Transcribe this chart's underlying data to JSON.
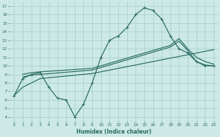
{
  "xlabel": "Humidex (Indice chaleur)",
  "xlim": [
    -0.5,
    23.5
  ],
  "ylim": [
    3.5,
    17.5
  ],
  "xticks": [
    0,
    1,
    2,
    3,
    4,
    5,
    6,
    7,
    8,
    9,
    10,
    11,
    12,
    13,
    14,
    15,
    16,
    17,
    18,
    19,
    20,
    21,
    22,
    23
  ],
  "yticks": [
    4,
    5,
    6,
    7,
    8,
    9,
    10,
    11,
    12,
    13,
    14,
    15,
    16,
    17
  ],
  "bg_color": "#cce9e5",
  "grid_color": "#aad4cf",
  "line_color": "#2a6b63",
  "curve1_x": [
    0,
    1,
    2,
    3,
    4,
    5,
    6,
    7,
    8,
    9,
    10,
    11,
    12,
    13,
    14,
    15,
    16,
    17,
    18,
    19,
    20,
    21,
    22,
    23
  ],
  "curve1_y": [
    6.5,
    8.5,
    9.0,
    9.2,
    7.5,
    6.2,
    6.0,
    4.0,
    5.5,
    8.0,
    11.0,
    13.0,
    13.5,
    14.5,
    16.0,
    16.8,
    16.5,
    15.5,
    13.5,
    12.0,
    11.5,
    10.5,
    10.0,
    10.0
  ],
  "curve2_x": [
    1,
    2,
    3,
    9,
    10,
    11,
    12,
    13,
    14,
    15,
    16,
    17,
    18,
    19,
    20,
    21,
    22,
    23
  ],
  "curve2_y": [
    9.0,
    9.2,
    9.3,
    9.7,
    10.0,
    10.3,
    10.6,
    10.9,
    11.2,
    11.5,
    11.8,
    12.1,
    12.4,
    13.2,
    12.0,
    11.0,
    10.5,
    10.2
  ],
  "curve3_x": [
    1,
    2,
    3,
    9,
    10,
    11,
    12,
    13,
    14,
    15,
    16,
    17,
    18,
    19,
    20,
    21,
    22,
    23
  ],
  "curve3_y": [
    8.7,
    8.9,
    9.0,
    9.5,
    9.8,
    10.1,
    10.4,
    10.7,
    11.0,
    11.3,
    11.6,
    11.9,
    12.2,
    12.9,
    11.8,
    10.5,
    10.1,
    10.0
  ],
  "curve4_x": [
    0,
    1,
    2,
    3,
    4,
    5,
    6,
    7,
    8,
    9,
    10,
    11,
    12,
    13,
    14,
    15,
    16,
    17,
    18,
    19,
    20,
    21,
    22,
    23
  ],
  "curve4_y": [
    6.5,
    7.5,
    8.0,
    8.5,
    8.6,
    8.7,
    8.8,
    8.9,
    9.0,
    9.1,
    9.3,
    9.5,
    9.7,
    9.9,
    10.1,
    10.3,
    10.5,
    10.7,
    10.9,
    11.1,
    11.3,
    11.5,
    11.7,
    11.9
  ]
}
